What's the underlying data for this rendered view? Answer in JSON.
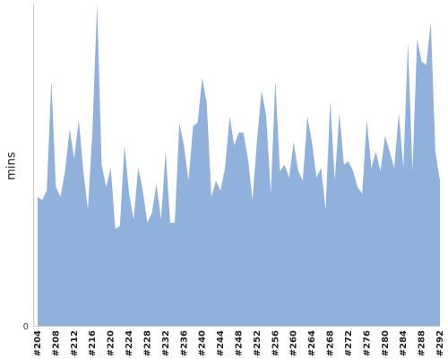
{
  "chart_data": {
    "type": "area",
    "title": "",
    "xlabel": "",
    "ylabel": "mins",
    "grid": false,
    "legend": "none",
    "ylim": [
      0,
      100
    ],
    "y_ticks": [
      {
        "value": 0,
        "label": "0"
      }
    ],
    "x_tick_labels": [
      "#204",
      "#208",
      "#212",
      "#216",
      "#220",
      "#224",
      "#228",
      "#232",
      "#236",
      "#240",
      "#244",
      "#248",
      "#252",
      "#256",
      "#260",
      "#264",
      "#268",
      "#272",
      "#276",
      "#280",
      "#284",
      "#288",
      "#292"
    ],
    "x_tick_start": 204,
    "x_tick_step": 4,
    "colors": {
      "area": "#8fb1dc",
      "axis": "#c8c8c8"
    },
    "series": [
      {
        "x": [
          204,
          205,
          206,
          207,
          208,
          209,
          210,
          211,
          212,
          213,
          214,
          215,
          216,
          217,
          218,
          219,
          220,
          221,
          222,
          223,
          224,
          225,
          226,
          227,
          228,
          229,
          230,
          231,
          232,
          233,
          234,
          235,
          236,
          237,
          238,
          239,
          240,
          241,
          242,
          243,
          244,
          245,
          246,
          247,
          248,
          249,
          250,
          251,
          252,
          253,
          254,
          255,
          256,
          257,
          258,
          259,
          260,
          261,
          262,
          263,
          264,
          265,
          266,
          267,
          268,
          269,
          270,
          271,
          272,
          273,
          274,
          275,
          276,
          277,
          278,
          279,
          280,
          281,
          282,
          283,
          284,
          285,
          286,
          287,
          288,
          289,
          290,
          291,
          292
        ],
        "values": [
          40,
          39,
          42,
          76,
          43,
          40,
          48,
          61,
          52,
          64,
          48,
          36,
          61,
          100,
          50,
          43,
          49,
          30,
          31,
          56,
          41,
          33,
          49,
          42,
          32,
          35,
          44,
          33,
          54,
          32,
          32,
          63,
          56,
          45,
          62,
          63,
          77,
          69,
          40,
          45,
          42,
          49,
          65,
          56,
          60,
          60,
          52,
          39,
          58,
          73,
          65,
          41,
          76,
          48,
          50,
          46,
          57,
          48,
          45,
          65,
          57,
          46,
          49,
          36,
          70,
          45,
          66,
          50,
          51,
          48,
          43,
          41,
          64,
          49,
          54,
          48,
          59,
          54,
          49,
          66,
          49,
          88,
          48,
          89,
          82,
          81,
          94,
          54,
          45
        ]
      }
    ]
  }
}
